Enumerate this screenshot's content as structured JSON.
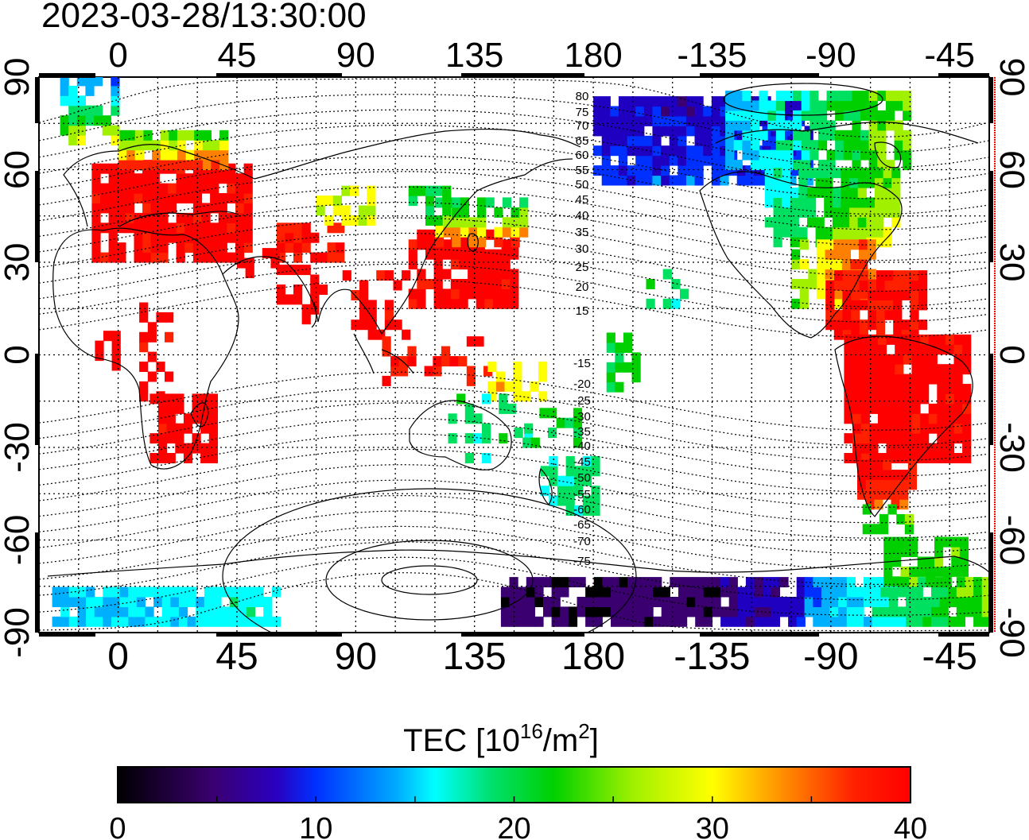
{
  "timestamp": "2023-03-28/13:30:00",
  "longitude_ticks": [
    "0",
    "45",
    "90",
    "135",
    "180",
    "-135",
    "-90",
    "-45"
  ],
  "latitude_ticks_left": [
    "90",
    "60",
    "30",
    "0",
    "-30",
    "-60",
    "-90"
  ],
  "latitude_ticks_right": [
    "90",
    "60",
    "30",
    "0",
    "-30",
    "-60",
    "-90"
  ],
  "magnetic_latitude_labels": [
    "80",
    "75",
    "70",
    "65",
    "60",
    "55",
    "50",
    "45",
    "40",
    "35",
    "30",
    "25",
    "20",
    "15",
    "-15",
    "-20",
    "-25",
    "-30",
    "-35",
    "-40",
    "-45",
    "-50",
    "-55",
    "-60",
    "-65",
    "-70",
    "-75"
  ],
  "colorbar": {
    "title_main": "TEC  [10",
    "title_exp1": "16",
    "title_mid": "/m",
    "title_exp2": "2",
    "title_end": "]",
    "min": 0,
    "max": 40,
    "tick_labels": [
      "0",
      "10",
      "20",
      "30",
      "40"
    ],
    "colors": [
      "#000000",
      "#3a0070",
      "#2000c0",
      "#0030ff",
      "#00b0ff",
      "#00ffff",
      "#00e060",
      "#00d000",
      "#a0f000",
      "#ffff00",
      "#ff8000",
      "#ff2000",
      "#ff0000"
    ]
  },
  "map": {
    "lon_range": [
      -30,
      330
    ],
    "lat_range": [
      -90,
      90
    ],
    "grid_step_lon": 15,
    "grid_step_lat": 15,
    "value_unit": "TECU"
  }
}
